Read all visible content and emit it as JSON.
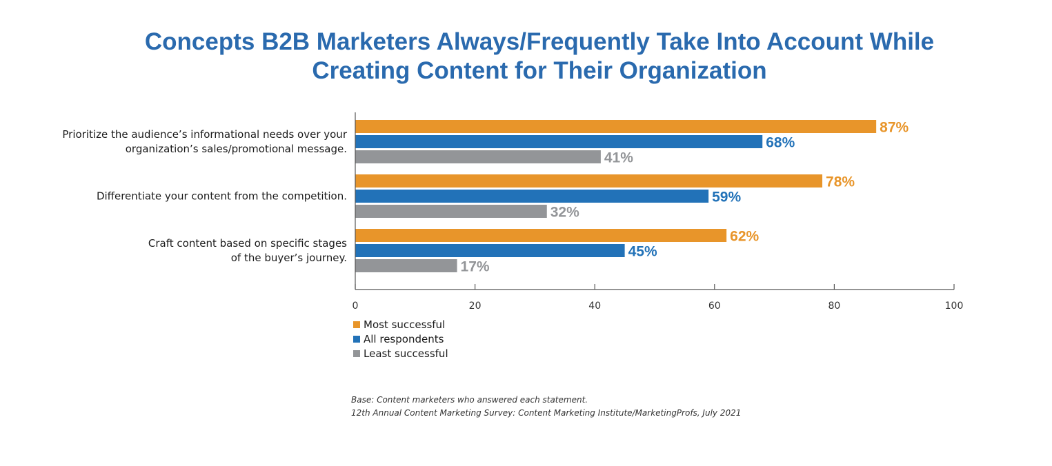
{
  "chart_data": {
    "type": "bar",
    "orientation": "horizontal",
    "title": "Concepts B2B Marketers Always/Frequently Take Into Account While Creating Content for Their Organization",
    "title_lines": [
      "Concepts B2B Marketers Always/Frequently Take Into Account While",
      "Creating Content for Their Organization"
    ],
    "categories": [
      "Prioritize the audience’s informational needs over your organization’s sales/promotional message.",
      "Differentiate your content from the competition.",
      "Craft content based on specific stages of the buyer’s journey."
    ],
    "category_lines": [
      [
        "Prioritize the audience’s informational needs over your",
        "organization’s sales/promotional message."
      ],
      [
        "Differentiate your content from the competition."
      ],
      [
        "Craft content based on specific stages",
        "of the buyer’s journey."
      ]
    ],
    "series": [
      {
        "name": "Most successful",
        "color": "#e8952a",
        "label_color": "#e8952a",
        "values": [
          87,
          78,
          62
        ],
        "labels": [
          "87%",
          "78%",
          "62%"
        ]
      },
      {
        "name": "All respondents",
        "color": "#2272b8",
        "label_color": "#2272b8",
        "values": [
          68,
          59,
          45
        ],
        "labels": [
          "68%",
          "59%",
          "45%"
        ]
      },
      {
        "name": "Least successful",
        "color": "#939598",
        "label_color": "#939598",
        "values": [
          41,
          32,
          17
        ],
        "labels": [
          "41%",
          "32%",
          "17%"
        ]
      }
    ],
    "xlim": [
      0,
      100
    ],
    "xticks": [
      0,
      20,
      40,
      60,
      80,
      100
    ],
    "xtick_labels": [
      "0",
      "20",
      "40",
      "60",
      "80",
      "100"
    ],
    "xlabel": "",
    "ylabel": "",
    "grid": false,
    "legend_position": "bottom-left",
    "notes": [
      "Base: Content marketers who answered each statement.",
      "12th Annual Content Marketing Survey: Content Marketing Institute/MarketingProfs, July 2021"
    ]
  }
}
